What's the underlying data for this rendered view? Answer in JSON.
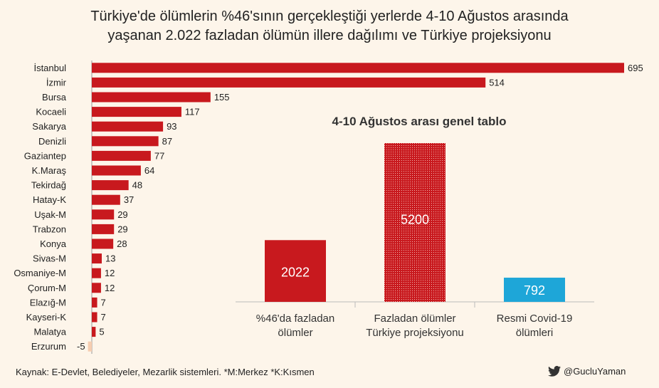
{
  "title_line1": "Türkiye'de ölümlerin %46'sının gerçekleştiği yerlerde 4-10 Ağustos arasında",
  "title_line2": "yaşanan 2.022 fazladan ölümün illere dağılımı ve Türkiye projeksiyonu",
  "source": "Kaynak: E-Devlet, Belediyeler, Mezarlik sistemleri. *M:Merkez  *K:Kısmen",
  "handle": "@GucluYaman",
  "icon": "twitter-bird-icon",
  "colors": {
    "bar": "#c8191e",
    "negative": "#f6cdb0",
    "covid": "#1ea6d8",
    "background": "#fdf5ea"
  },
  "chart_data": [
    {
      "type": "bar",
      "orientation": "horizontal",
      "title": "Türkiye'de ölümlerin %46'sının gerçekleştiği yerlerde 4-10 Ağustos arasında yaşanan 2.022 fazladan ölümün illere dağılımı ve Türkiye projeksiyonu",
      "categories": [
        "İstanbul",
        "İzmir",
        "Bursa",
        "Kocaeli",
        "Sakarya",
        "Denizli",
        "Gaziantep",
        "K.Maraş",
        "Tekirdağ",
        "Hatay-K",
        "Uşak-M",
        "Trabzon",
        "Konya",
        "Sivas-M",
        "Osmaniye-M",
        "Çorum-M",
        "Elazığ-M",
        "Kayseri-K",
        "Malatya",
        "Erzurum"
      ],
      "values": [
        695,
        514,
        155,
        117,
        93,
        87,
        77,
        64,
        48,
        37,
        29,
        29,
        28,
        13,
        12,
        12,
        7,
        7,
        5,
        -5
      ]
    },
    {
      "type": "bar",
      "title": "4-10 Ağustos arası genel tablo",
      "categories": [
        "%46'da fazladan ölümler",
        "Fazladan ölümler Türkiye projeksiyonu",
        "Resmi Covid-19 ölümleri"
      ],
      "label_lines": [
        [
          "%46'da fazladan",
          "ölümler"
        ],
        [
          "Fazladan ölümler",
          "Türkiye projeksiyonu"
        ],
        [
          "Resmi Covid-19",
          "ölümleri"
        ]
      ],
      "values": [
        2022,
        5200,
        792
      ],
      "value_labels": [
        "2022",
        "5200",
        "792"
      ],
      "colors": [
        "#c8191e",
        "#c8191e",
        "#1ea6d8"
      ],
      "patterned": [
        false,
        true,
        false
      ]
    }
  ]
}
